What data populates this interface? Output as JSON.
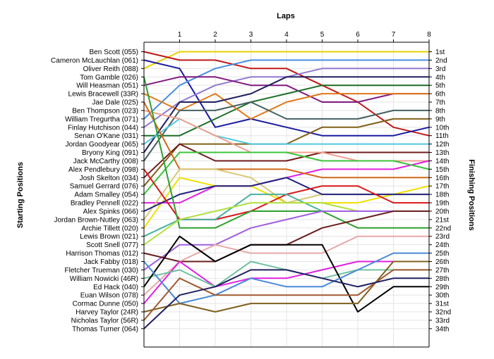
{
  "chart_data": {
    "type": "line",
    "title": "",
    "top_axis_label": "Laps",
    "left_axis_label": "Starting Positions",
    "right_axis_label": "Finishing Positions",
    "laps": [
      1,
      2,
      3,
      4,
      5,
      6,
      7,
      8
    ],
    "ylim": [
      1,
      34
    ],
    "grid": true,
    "drivers": [
      "Ben Scott (055)",
      "Cameron McLauchlan (061)",
      "Oliver Reith (088)",
      "Tom Gamble (026)",
      "Will Heasman (051)",
      "Lewis Bracewell (33R)",
      "Jae Dale (025)",
      "Ben Thompson (023)",
      "William Tregurtha (071)",
      "Finlay Hutchison (044)",
      "Senan O'Kane (031)",
      "Jordan Goodyear (065)",
      "Bryony King (091)",
      "Jack McCarthy (008)",
      "Alex Pendlebury (098)",
      "Josh Skelton (034)",
      "Samuel Gerrard (076)",
      "Adam Smalley (054)",
      "Bradley Pennell (022)",
      "Alex Spinks (066)",
      "Jordan Brown-Nutley (063)",
      "Archie Tillett (020)",
      "Lewis Brown (021)",
      "Scott Snell (077)",
      "Harrison Thomas (012)",
      "Jack Fabby (018)",
      "Fletcher Trueman (030)",
      "William Nowicki (46R)",
      "Ed Hack (040)",
      "Euan Wilson (078)",
      "Cormac Dunne (050)",
      "Harvey Taylor (24R)",
      "Nicholas Taylor (56R)",
      "Thomas Turner (064)"
    ],
    "finishing_labels": [
      "1st",
      "2nd",
      "3rd",
      "4th",
      "5th",
      "6th",
      "7th",
      "8th",
      "9th",
      "10th",
      "11th",
      "12th",
      "13th",
      "14th",
      "15th",
      "16th",
      "17th",
      "18th",
      "19th",
      "20th",
      "21st",
      "22nd",
      "23rd",
      "24th",
      "25th",
      "26th",
      "27th",
      "28th",
      "29th",
      "30th",
      "31st",
      "32nd",
      "33rd",
      "34th"
    ],
    "series": [
      {
        "color": "#e6d000",
        "values": [
          3,
          1,
          1,
          1,
          1,
          1,
          1,
          1,
          1
        ]
      },
      {
        "color": "#c01818",
        "values": [
          1,
          2,
          2,
          3,
          3,
          5,
          7,
          10,
          11
        ]
      },
      {
        "color": "#1a1aa0",
        "values": [
          2,
          3,
          10,
          9,
          10,
          11,
          11,
          11,
          10
        ]
      },
      {
        "color": "#4a8fe0",
        "values": [
          9,
          5,
          3,
          2,
          2,
          2,
          2,
          2,
          2
        ]
      },
      {
        "color": "#9078d0",
        "values": [
          10,
          7,
          5,
          4,
          4,
          3,
          3,
          3,
          3
        ]
      },
      {
        "color": "#801880",
        "values": [
          5,
          4,
          4,
          5,
          5,
          7,
          7,
          6,
          6
        ]
      },
      {
        "color": "#1c6f28",
        "values": [
          11,
          11,
          9,
          7,
          6,
          5,
          5,
          5,
          5
        ]
      },
      {
        "color": "#e07818",
        "values": [
          6,
          8,
          6,
          9,
          7,
          6,
          6,
          6,
          6
        ]
      },
      {
        "color": "#202060",
        "values": [
          13,
          7,
          7,
          6,
          4,
          4,
          4,
          4,
          4
        ]
      },
      {
        "color": "#446060",
        "values": [
          14,
          8,
          8,
          7,
          9,
          9,
          9,
          8,
          8
        ]
      },
      {
        "color": "#806018",
        "values": [
          17,
          12,
          12,
          12,
          12,
          10,
          10,
          9,
          9
        ]
      },
      {
        "color": "#50c8e0",
        "values": [
          12,
          9,
          11,
          12,
          12,
          12,
          12,
          12,
          12
        ]
      },
      {
        "color": "#701c1c",
        "values": [
          16,
          12,
          14,
          14,
          14,
          13,
          13,
          13,
          13
        ]
      },
      {
        "color": "#f0a090",
        "values": [
          8,
          9,
          11,
          13,
          13,
          13,
          14,
          14,
          14
        ]
      },
      {
        "color": "#e020e0",
        "values": [
          19,
          19,
          17,
          17,
          16,
          15,
          15,
          15,
          14
        ]
      },
      {
        "color": "#3cc43c",
        "values": [
          18,
          13,
          13,
          13,
          13,
          14,
          14,
          14,
          15
        ]
      },
      {
        "color": "#d06818",
        "values": [
          7,
          15,
          15,
          15,
          15,
          16,
          16,
          16,
          16
        ]
      },
      {
        "color": "#f0e000",
        "values": [
          22,
          16,
          17,
          17,
          19,
          19,
          19,
          18,
          17
        ]
      },
      {
        "color": "#d8c878",
        "values": [
          21,
          15,
          15,
          16,
          19,
          18,
          18,
          18,
          18
        ]
      },
      {
        "color": "#202080",
        "values": [
          20,
          18,
          17,
          17,
          16,
          18,
          18,
          18,
          18
        ]
      },
      {
        "color": "#d81818",
        "values": [
          15,
          21,
          21,
          20,
          18,
          17,
          17,
          19,
          19
        ]
      },
      {
        "color": "#30a030",
        "values": [
          4,
          22,
          22,
          20,
          20,
          20,
          22,
          22,
          22
        ]
      },
      {
        "color": "#48b0a0",
        "values": [
          23,
          21,
          21,
          18,
          18,
          20,
          20,
          20,
          20
        ]
      },
      {
        "color": "#b0e040",
        "values": [
          24,
          21,
          20,
          19,
          19,
          19,
          20,
          20,
          20
        ]
      },
      {
        "color": "#a060e0",
        "values": [
          27,
          24,
          24,
          22,
          21,
          20,
          20,
          20,
          20
        ]
      },
      {
        "color": "#6a2020",
        "values": [
          25,
          26,
          26,
          24,
          24,
          22,
          21,
          20,
          20
        ]
      },
      {
        "color": "#e8a8a8",
        "values": [
          30,
          26,
          24,
          25,
          25,
          25,
          23,
          23,
          23
        ]
      },
      {
        "color": "#e020e0",
        "values": [
          31,
          26,
          29,
          28,
          28,
          27,
          26,
          26,
          26
        ]
      },
      {
        "color": "#70c0a0",
        "values": [
          28,
          27,
          29,
          26,
          27,
          28,
          27,
          27,
          27
        ]
      },
      {
        "color": "#000000",
        "values": [
          29,
          23,
          26,
          24,
          24,
          24,
          32,
          29,
          29
        ]
      },
      {
        "color": "#4a88d8",
        "values": [
          26,
          31,
          30,
          28,
          29,
          29,
          27,
          25,
          25
        ]
      },
      {
        "color": "#806020",
        "values": [
          32,
          31,
          32,
          31,
          31,
          31,
          31,
          26,
          26
        ]
      },
      {
        "color": "#a05a30",
        "values": [
          33,
          28,
          30,
          30,
          30,
          30,
          30,
          27,
          27
        ]
      },
      {
        "color": "#202060",
        "values": [
          34,
          30,
          29,
          27,
          27,
          28,
          29,
          28,
          28
        ]
      }
    ]
  }
}
